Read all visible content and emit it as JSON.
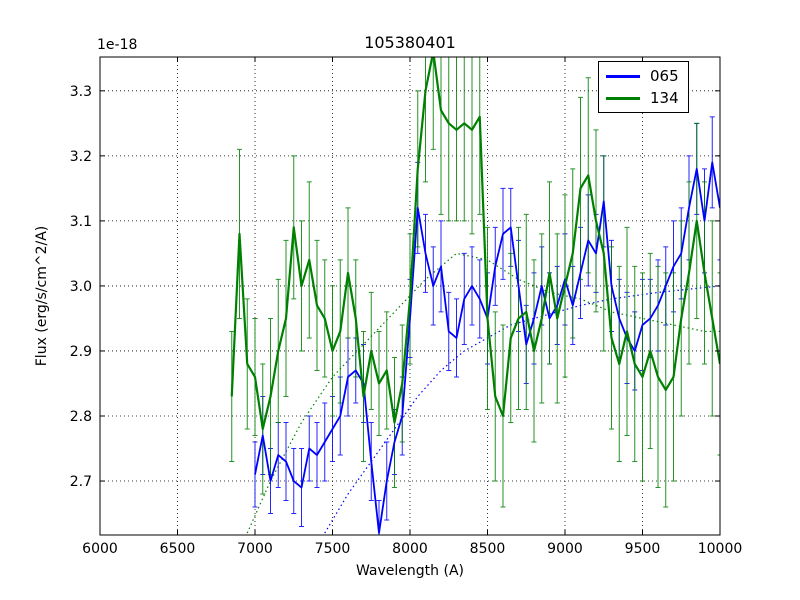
{
  "chart_data": {
    "type": "line",
    "title": "105380401",
    "xlabel": "Wavelength (A)",
    "ylabel": "Flux (erg/s/cm^2/A)",
    "y_offset_label": "1e-18",
    "xlim": [
      6000,
      10000
    ],
    "ylim": [
      2.617,
      3.352
    ],
    "xticks": [
      6000,
      6500,
      7000,
      7500,
      8000,
      8500,
      9000,
      9500,
      10000
    ],
    "xtick_labels": [
      "6000",
      "6500",
      "7000",
      "7500",
      "8000",
      "8500",
      "9000",
      "9500",
      "10000"
    ],
    "yticks": [
      2.7,
      2.8,
      2.9,
      3.0,
      3.1,
      3.2,
      3.3
    ],
    "ytick_labels": [
      "2.7",
      "2.8",
      "2.9",
      "3.0",
      "3.1",
      "3.2",
      "3.3"
    ],
    "grid": true,
    "grid_style": "dotted",
    "legend_position": "upper right",
    "series": [
      {
        "name": "065",
        "color": "#0000ff",
        "line_width": 1.8,
        "x": [
          7000,
          7050,
          7100,
          7150,
          7200,
          7250,
          7300,
          7350,
          7400,
          7450,
          7500,
          7550,
          7600,
          7650,
          7700,
          7750,
          7800,
          7850,
          7900,
          7950,
          8000,
          8050,
          8100,
          8150,
          8200,
          8250,
          8300,
          8350,
          8400,
          8450,
          8500,
          8550,
          8600,
          8650,
          8700,
          8750,
          8800,
          8850,
          8900,
          8950,
          9000,
          9050,
          9100,
          9150,
          9200,
          9250,
          9300,
          9350,
          9400,
          9450,
          9500,
          9550,
          9600,
          9650,
          9700,
          9750,
          9800,
          9850,
          9900,
          9950,
          10000
        ],
        "y": [
          2.71,
          2.77,
          2.7,
          2.74,
          2.73,
          2.7,
          2.69,
          2.75,
          2.74,
          2.76,
          2.78,
          2.8,
          2.86,
          2.87,
          2.85,
          2.73,
          2.62,
          2.7,
          2.76,
          2.8,
          2.95,
          3.12,
          3.05,
          3.0,
          3.03,
          2.93,
          2.92,
          2.98,
          3.0,
          2.98,
          2.95,
          3.03,
          3.08,
          3.09,
          3.0,
          2.91,
          2.95,
          3.0,
          2.95,
          2.97,
          3.01,
          2.97,
          3.02,
          3.07,
          3.05,
          3.13,
          3.0,
          2.95,
          2.92,
          2.9,
          2.94,
          2.95,
          2.97,
          3.0,
          3.03,
          3.05,
          3.12,
          3.18,
          3.1,
          3.19,
          3.12
        ],
        "yerr": [
          0.05,
          0.06,
          0.05,
          0.05,
          0.06,
          0.05,
          0.06,
          0.05,
          0.05,
          0.06,
          0.05,
          0.06,
          0.06,
          0.05,
          0.06,
          0.06,
          0.05,
          0.06,
          0.05,
          0.06,
          0.06,
          0.07,
          0.06,
          0.06,
          0.07,
          0.06,
          0.06,
          0.07,
          0.06,
          0.06,
          0.07,
          0.06,
          0.07,
          0.06,
          0.07,
          0.06,
          0.07,
          0.06,
          0.07,
          0.06,
          0.07,
          0.06,
          0.07,
          0.07,
          0.06,
          0.07,
          0.07,
          0.06,
          0.07,
          0.06,
          0.07,
          0.06,
          0.07,
          0.06,
          0.07,
          0.07,
          0.08,
          0.07,
          0.08,
          0.07,
          0.08
        ]
      },
      {
        "name": "134",
        "color": "#008000",
        "line_width": 2.2,
        "x": [
          6850,
          6900,
          6950,
          7000,
          7050,
          7100,
          7150,
          7200,
          7250,
          7300,
          7350,
          7400,
          7450,
          7500,
          7550,
          7600,
          7650,
          7700,
          7750,
          7800,
          7850,
          7900,
          7950,
          8000,
          8050,
          8100,
          8150,
          8200,
          8250,
          8300,
          8350,
          8400,
          8450,
          8500,
          8550,
          8600,
          8650,
          8700,
          8750,
          8800,
          8850,
          8900,
          8950,
          9000,
          9050,
          9100,
          9150,
          9200,
          9250,
          9300,
          9350,
          9400,
          9450,
          9500,
          9550,
          9600,
          9650,
          9700,
          9750,
          9800,
          9850,
          9900,
          9950,
          10000
        ],
        "y": [
          2.83,
          3.08,
          2.88,
          2.86,
          2.78,
          2.83,
          2.9,
          2.95,
          3.09,
          3.0,
          3.04,
          2.97,
          2.95,
          2.9,
          2.93,
          3.02,
          2.95,
          2.83,
          2.9,
          2.85,
          2.87,
          2.79,
          2.85,
          2.98,
          3.18,
          3.3,
          3.36,
          3.27,
          3.25,
          3.24,
          3.25,
          3.24,
          3.26,
          2.95,
          2.83,
          2.8,
          2.92,
          2.95,
          2.96,
          2.9,
          2.95,
          3.02,
          2.95,
          3.0,
          3.05,
          3.15,
          3.17,
          3.1,
          3.05,
          2.92,
          2.88,
          2.93,
          2.88,
          2.86,
          2.9,
          2.86,
          2.84,
          2.86,
          2.95,
          3.02,
          3.1,
          3.02,
          2.95,
          2.88
        ],
        "yerr": [
          0.1,
          0.13,
          0.1,
          0.09,
          0.1,
          0.12,
          0.11,
          0.12,
          0.11,
          0.1,
          0.12,
          0.1,
          0.09,
          0.1,
          0.11,
          0.1,
          0.09,
          0.1,
          0.09,
          0.08,
          0.09,
          0.1,
          0.09,
          0.1,
          0.12,
          0.14,
          0.15,
          0.16,
          0.15,
          0.14,
          0.15,
          0.16,
          0.15,
          0.14,
          0.13,
          0.14,
          0.13,
          0.14,
          0.15,
          0.14,
          0.13,
          0.14,
          0.13,
          0.14,
          0.13,
          0.14,
          0.15,
          0.14,
          0.15,
          0.14,
          0.15,
          0.16,
          0.15,
          0.16,
          0.15,
          0.17,
          0.18,
          0.16,
          0.15,
          0.14,
          0.15,
          0.14,
          0.15,
          0.14
        ]
      }
    ],
    "fit_curves": [
      {
        "name": "065 fit",
        "color": "#0000ff",
        "style": "dotted",
        "x": [
          7450,
          7600,
          7750,
          7900,
          8050,
          8200,
          8350,
          8500,
          8650,
          8800,
          8950,
          9100,
          9300,
          9600,
          10000
        ],
        "y": [
          2.62,
          2.68,
          2.73,
          2.78,
          2.83,
          2.87,
          2.9,
          2.92,
          2.94,
          2.95,
          2.96,
          2.97,
          2.98,
          2.99,
          3.0
        ]
      },
      {
        "name": "134 fit",
        "color": "#008000",
        "style": "dotted",
        "x": [
          6950,
          7100,
          7300,
          7500,
          7700,
          7900,
          8100,
          8300,
          8500,
          8700,
          8900,
          9100,
          9300,
          9500,
          9700,
          9900,
          10000
        ],
        "y": [
          2.62,
          2.7,
          2.79,
          2.86,
          2.91,
          2.96,
          3.01,
          3.05,
          3.04,
          3.01,
          2.99,
          2.98,
          2.96,
          2.95,
          2.94,
          2.93,
          2.93
        ]
      }
    ]
  }
}
